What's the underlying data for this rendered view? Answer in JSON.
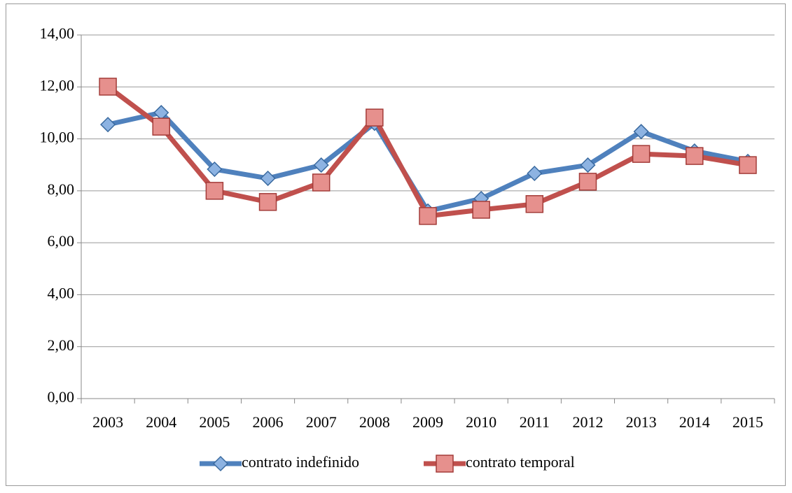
{
  "chart_data": {
    "type": "line",
    "categories": [
      "2003",
      "2004",
      "2005",
      "2006",
      "2007",
      "2008",
      "2009",
      "2010",
      "2011",
      "2012",
      "2013",
      "2014",
      "2015"
    ],
    "series": [
      {
        "name": "contrato indefinido",
        "color": "#4f81bd",
        "marker": "diamond",
        "values": [
          10.55,
          11.01,
          8.83,
          8.48,
          8.99,
          10.6,
          7.22,
          7.7,
          8.67,
          8.99,
          10.28,
          9.53,
          9.13
        ]
      },
      {
        "name": "contrato temporal",
        "color": "#c0504d",
        "marker": "square",
        "values": [
          12.01,
          10.47,
          8.0,
          7.57,
          8.32,
          10.82,
          7.03,
          7.27,
          7.49,
          8.35,
          9.42,
          9.34,
          8.99
        ]
      }
    ],
    "ylim": [
      0,
      14
    ],
    "yticks": [
      {
        "value": 0,
        "label": "0,00"
      },
      {
        "value": 2,
        "label": "2,00"
      },
      {
        "value": 4,
        "label": "4,00"
      },
      {
        "value": 6,
        "label": "6,00"
      },
      {
        "value": 8,
        "label": "8,00"
      },
      {
        "value": 10,
        "label": "10,00"
      },
      {
        "value": 12,
        "label": "12,00"
      },
      {
        "value": 14,
        "label": "14,00"
      }
    ],
    "grid": true,
    "legend": "bottom"
  }
}
